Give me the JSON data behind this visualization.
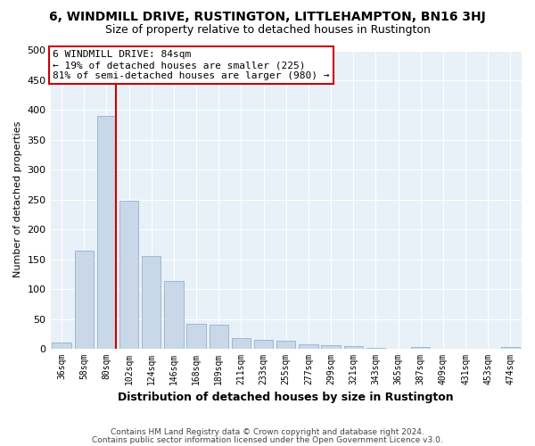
{
  "title": "6, WINDMILL DRIVE, RUSTINGTON, LITTLEHAMPTON, BN16 3HJ",
  "subtitle": "Size of property relative to detached houses in Rustington",
  "xlabel": "Distribution of detached houses by size in Rustington",
  "ylabel": "Number of detached properties",
  "categories": [
    "36sqm",
    "58sqm",
    "80sqm",
    "102sqm",
    "124sqm",
    "146sqm",
    "168sqm",
    "189sqm",
    "211sqm",
    "233sqm",
    "255sqm",
    "277sqm",
    "299sqm",
    "321sqm",
    "343sqm",
    "365sqm",
    "387sqm",
    "409sqm",
    "431sqm",
    "453sqm",
    "474sqm"
  ],
  "values": [
    10,
    165,
    390,
    248,
    155,
    113,
    42,
    40,
    18,
    15,
    13,
    8,
    6,
    4,
    2,
    0,
    3,
    0,
    0,
    0,
    3
  ],
  "bar_color": "#c8d8e8",
  "bar_edge_color": "#a0b8cc",
  "red_line_index": 2,
  "annotation_line1": "6 WINDMILL DRIVE: 84sqm",
  "annotation_line2": "← 19% of detached houses are smaller (225)",
  "annotation_line3": "81% of semi-detached houses are larger (980) →",
  "annotation_box_color": "#ffffff",
  "annotation_box_edge_color": "#cc0000",
  "footnote1": "Contains HM Land Registry data © Crown copyright and database right 2024.",
  "footnote2": "Contains public sector information licensed under the Open Government Licence v3.0.",
  "ylim": [
    0,
    500
  ],
  "yticks": [
    0,
    50,
    100,
    150,
    200,
    250,
    300,
    350,
    400,
    450,
    500
  ],
  "bg_color": "#e8f0f8",
  "fig_bg_color": "#ffffff",
  "grid_color": "#ffffff",
  "title_fontsize": 10,
  "subtitle_fontsize": 9,
  "xlabel_fontsize": 9,
  "ylabel_fontsize": 8
}
